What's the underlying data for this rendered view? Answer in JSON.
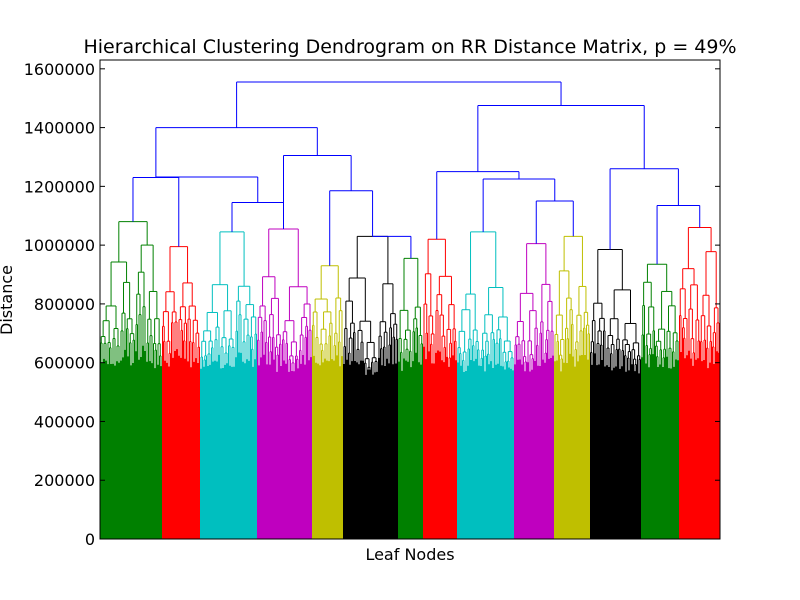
{
  "chart_data": {
    "type": "dendrogram",
    "title": "Hierarchical Clustering Dendrogram on RR Distance Matrix, p = 49%",
    "xlabel": "Leaf Nodes",
    "ylabel": "Distance",
    "ylim": [
      0,
      1630000
    ],
    "yticks": [
      0,
      200000,
      400000,
      600000,
      800000,
      1000000,
      1200000,
      1400000,
      1600000
    ],
    "ytick_labels": [
      "0",
      "200000",
      "400000",
      "600000",
      "800000",
      "1000000",
      "1200000",
      "1400000",
      "1600000"
    ],
    "grid": false,
    "leaf_count": 620,
    "clusters": [
      {
        "color": "#008000",
        "leaves": 62,
        "height": 1080000
      },
      {
        "color": "#ff0000",
        "leaves": 38,
        "height": 995000
      },
      {
        "color": "#00bfbf",
        "leaves": 57,
        "height": 1045000
      },
      {
        "color": "#bf00bf",
        "leaves": 55,
        "height": 1055000
      },
      {
        "color": "#bfbf00",
        "leaves": 31,
        "height": 930000
      },
      {
        "color": "#000000",
        "leaves": 55,
        "height": 1030000
      },
      {
        "color": "#008000",
        "leaves": 25,
        "height": 955000
      },
      {
        "color": "#ff0000",
        "leaves": 34,
        "height": 1020000
      },
      {
        "color": "#00bfbf",
        "leaves": 57,
        "height": 1045000
      },
      {
        "color": "#bf00bf",
        "leaves": 40,
        "height": 1005000
      },
      {
        "color": "#bfbf00",
        "leaves": 36,
        "height": 1030000
      },
      {
        "color": "#000000",
        "leaves": 51,
        "height": 985000
      },
      {
        "color": "#008000",
        "leaves": 38,
        "height": 935000
      },
      {
        "color": "#ff0000",
        "leaves": 41,
        "height": 1060000
      }
    ],
    "upper_merges_color": "#0000ff",
    "merges": [
      {
        "left": 0,
        "right": 1,
        "height": 1230000
      },
      {
        "left": 2,
        "right": 3,
        "height": 1145000
      },
      {
        "left": "m0",
        "right": "m1",
        "height": 1230000
      },
      {
        "left": 5,
        "right": 6,
        "height": 1030000
      },
      {
        "left": 4,
        "right": "m3",
        "height": 1185000
      },
      {
        "left": 3,
        "right": "m4",
        "height": 1305000
      },
      {
        "left": "m2",
        "right": "m5",
        "height": 1400000
      },
      {
        "left": 9,
        "right": 10,
        "height": 1150000
      },
      {
        "left": 8,
        "right": "m7",
        "height": 1225000
      },
      {
        "left": 7,
        "right": "m8",
        "height": 1250000
      },
      {
        "left": 12,
        "right": 13,
        "height": 1135000
      },
      {
        "left": 11,
        "right": "m10",
        "height": 1260000
      },
      {
        "left": "m9",
        "right": "m11",
        "height": 1475000
      },
      {
        "left": "m6",
        "right": "m12",
        "height": 1555000
      }
    ]
  }
}
